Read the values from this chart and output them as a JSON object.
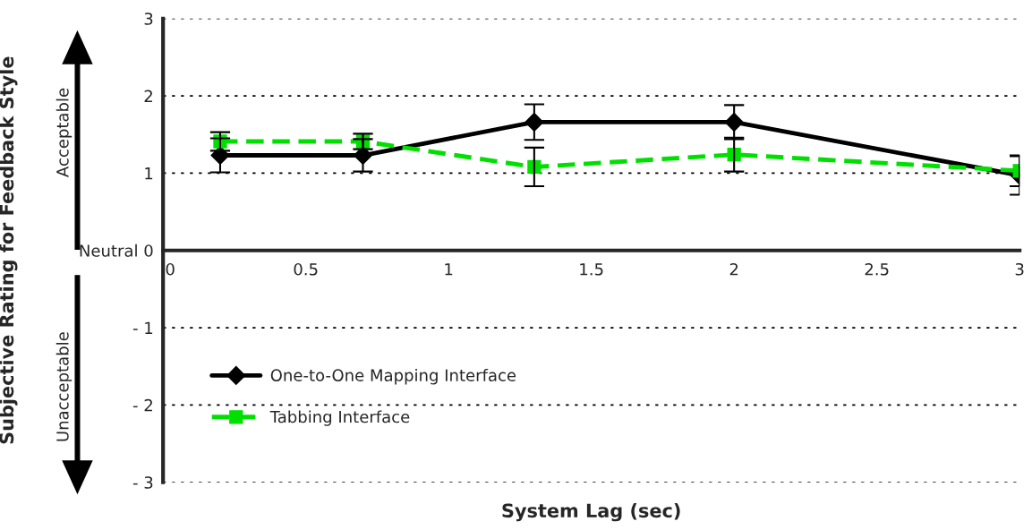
{
  "chart_data": {
    "type": "line",
    "xlabel": "System Lag (sec)",
    "ylabel": "Subjective Rating for Feedback Style",
    "x": [
      0.2,
      0.7,
      1.3,
      2.0,
      3.0
    ],
    "series": [
      {
        "name": "One-to-One Mapping Interface",
        "color": "#000000",
        "marker": "diamond",
        "line_style": "solid",
        "values": [
          1.23,
          1.23,
          1.66,
          1.66,
          0.97
        ],
        "errors": [
          0.22,
          0.21,
          0.23,
          0.22,
          0.25
        ]
      },
      {
        "name": "Tabbing Interface",
        "color": "#00e000",
        "marker": "square",
        "line_style": "dashed",
        "values": [
          1.41,
          1.41,
          1.08,
          1.24,
          1.03
        ],
        "errors": [
          0.12,
          0.1,
          0.25,
          0.22,
          0.2
        ]
      }
    ],
    "xlim": [
      0,
      3
    ],
    "xticks": [
      0,
      0.5,
      1,
      1.5,
      2,
      2.5,
      3
    ],
    "ylim": [
      -3,
      3
    ],
    "yticks": [
      {
        "value": -3,
        "label": "- 3"
      },
      {
        "value": -2,
        "label": "- 2"
      },
      {
        "value": -1,
        "label": "- 1"
      },
      {
        "value": 0,
        "label": "Neutral 0"
      },
      1,
      2,
      3
    ],
    "grid": "y",
    "legend": "bottom left",
    "annotations": [
      "Acceptable",
      "Unacceptable"
    ]
  }
}
